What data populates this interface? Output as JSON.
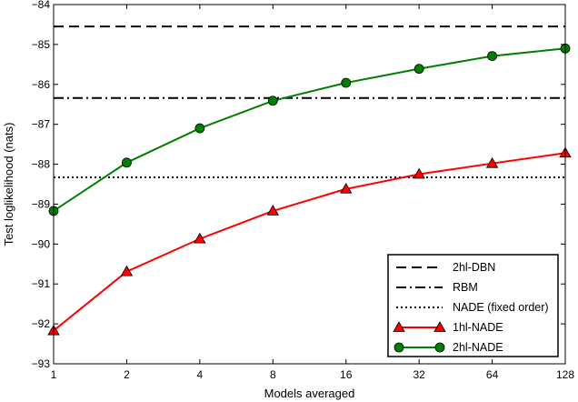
{
  "chart_data": {
    "type": "line",
    "xlabel": "Models averaged",
    "ylabel": "Test loglikelihood (nats)",
    "x": [
      1,
      2,
      4,
      8,
      16,
      32,
      64,
      128
    ],
    "x_scale": "log2",
    "xlim": [
      1,
      128
    ],
    "ylim": [
      -93,
      -84
    ],
    "x_ticks": [
      "1",
      "2",
      "4",
      "8",
      "16",
      "32",
      "64",
      "128"
    ],
    "y_ticks": [
      "−84",
      "−85",
      "−86",
      "−87",
      "−88",
      "−89",
      "−90",
      "−91",
      "−92",
      "−93"
    ],
    "y_tick_values": [
      -84,
      -85,
      -86,
      -87,
      -88,
      -89,
      -90,
      -91,
      -92,
      -93
    ],
    "grid": false,
    "legend_position": "bottom-right",
    "hlines": [
      {
        "name": "2hl-DBN",
        "value": -84.55,
        "style": "dashed",
        "color": "#000000"
      },
      {
        "name": "RBM",
        "value": -86.34,
        "style": "dashdot",
        "color": "#000000"
      },
      {
        "name": "NADE (fixed order)",
        "value": -88.33,
        "style": "dotted",
        "color": "#000000"
      }
    ],
    "series": [
      {
        "name": "1hl-NADE",
        "marker": "triangle",
        "color": "#ff0000",
        "values": [
          -92.17,
          -90.69,
          -89.87,
          -89.17,
          -88.62,
          -88.25,
          -87.98,
          -87.72
        ]
      },
      {
        "name": "2hl-NADE",
        "marker": "circle",
        "color": "#008000",
        "values": [
          -89.17,
          -87.96,
          -87.1,
          -86.41,
          -85.96,
          -85.61,
          -85.29,
          -85.1
        ]
      }
    ]
  }
}
